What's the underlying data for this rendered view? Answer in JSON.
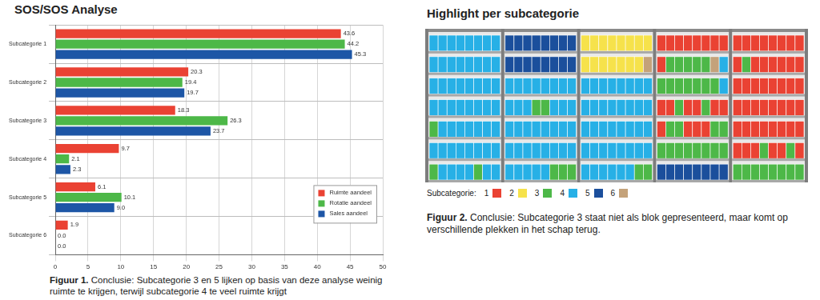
{
  "chart_data": {
    "type": "bar",
    "title": "SOS/SOS Analyse",
    "orientation": "horizontal",
    "categories": [
      "Subcategorie 1",
      "Subcategorie 2",
      "Subcategorie 3",
      "Subcategorie 4",
      "Subcategorie 5",
      "Subcategorie 6"
    ],
    "series": [
      {
        "name": "Ruimte aandeel",
        "color": "#ea4233",
        "values": [
          43.6,
          20.3,
          18.3,
          9.7,
          6.1,
          1.9
        ],
        "value_labels": [
          "43.6",
          "20.3",
          "18.3",
          "9.7",
          "6.1",
          "1.9"
        ]
      },
      {
        "name": "Rotatie aandeel",
        "color": "#4db848",
        "values": [
          44.2,
          19.4,
          26.3,
          2.1,
          10.1,
          0.0
        ],
        "value_labels": [
          "44.2",
          "19.4",
          "26.3",
          "2.1",
          "10.1",
          "0.0"
        ]
      },
      {
        "name": "Sales aandeel",
        "color": "#1d56a6",
        "values": [
          45.3,
          19.7,
          23.7,
          2.3,
          9.0,
          0.0
        ],
        "value_labels": [
          "45.3",
          "19.7",
          "23.7",
          "2.3",
          "9.0",
          "0.0"
        ]
      }
    ],
    "xlim": [
      0,
      50
    ],
    "xticks": [
      0,
      5,
      10,
      15,
      20,
      25,
      30,
      35,
      40,
      45,
      50
    ],
    "grid": true,
    "legend": "lower right",
    "data_labels": true
  },
  "figure_1_caption": {
    "label": "Figuur 1.",
    "text": "Conclusie: Subcategorie 3 en 5 lijken op basis van deze analyse weinig ruimte te krijgen, terwijl subcategorie 4 te veel ruimte krijgt"
  },
  "shelf_figure": {
    "title": "Highlight per subcategorie",
    "legend": {
      "title": "Subcategorie:",
      "items": [
        {
          "name": "1",
          "color": "#ea4233"
        },
        {
          "name": "2",
          "color": "#f6e24b"
        },
        {
          "name": "3",
          "color": "#4db848"
        },
        {
          "name": "4",
          "color": "#27b0e6"
        },
        {
          "name": "5",
          "color": "#1b4f9c"
        },
        {
          "name": "6",
          "color": "#c4a27a"
        }
      ]
    },
    "bays": [
      [
        [
          [
            "4",
            8
          ]
        ],
        [
          [
            "4",
            8
          ]
        ],
        [
          [
            "4",
            8
          ]
        ],
        [
          [
            "4",
            8
          ]
        ],
        [
          [
            "3",
            1
          ],
          [
            "4",
            7
          ]
        ],
        [
          [
            "4",
            8
          ]
        ],
        [
          [
            "3",
            1
          ],
          [
            "4",
            4
          ],
          [
            "3",
            1
          ],
          [
            "4",
            2
          ]
        ]
      ],
      [
        [
          [
            "5",
            8
          ]
        ],
        [
          [
            "5",
            8
          ]
        ],
        [
          [
            "4",
            8
          ]
        ],
        [
          [
            "4",
            3
          ],
          [
            "3",
            2
          ],
          [
            "4",
            3
          ]
        ],
        [
          [
            "4",
            8
          ]
        ],
        [
          [
            "4",
            8
          ]
        ],
        [
          [
            "4",
            5
          ],
          [
            "3",
            3
          ]
        ]
      ],
      [
        [
          [
            "2",
            8
          ]
        ],
        [
          [
            "2",
            7
          ],
          [
            "6",
            1
          ]
        ],
        [
          [
            "4",
            8
          ]
        ],
        [
          [
            "4",
            8
          ]
        ],
        [
          [
            "4",
            8
          ]
        ],
        [
          [
            "4",
            8
          ]
        ],
        [
          [
            "4",
            6
          ],
          [
            "3",
            2
          ]
        ]
      ],
      [
        [
          [
            "1",
            8
          ]
        ],
        [
          [
            "1",
            1
          ],
          [
            "3",
            5
          ],
          [
            "6",
            1
          ],
          [
            "4",
            1
          ]
        ],
        [
          [
            "3",
            7
          ],
          [
            "4",
            1
          ]
        ],
        [
          [
            "1",
            2
          ],
          [
            "3",
            1
          ],
          [
            "1",
            2
          ],
          [
            "3",
            1
          ],
          [
            "1",
            2
          ]
        ],
        [
          [
            "1",
            1
          ],
          [
            "3",
            2
          ],
          [
            "1",
            3
          ],
          [
            "3",
            2
          ]
        ],
        [
          [
            "3",
            8
          ]
        ],
        [
          [
            "5",
            8
          ]
        ]
      ],
      [
        [
          [
            "1",
            8
          ]
        ],
        [
          [
            "1",
            1
          ],
          [
            "3",
            1
          ],
          [
            "1",
            6
          ]
        ],
        [
          [
            "1",
            8
          ]
        ],
        [
          [
            "1",
            8
          ]
        ],
        [
          [
            "1",
            8
          ]
        ],
        [
          [
            "1",
            3
          ],
          [
            "3",
            1
          ],
          [
            "1",
            2
          ],
          [
            "3",
            1
          ],
          [
            "1",
            1
          ]
        ],
        [
          [
            "3",
            8
          ]
        ]
      ]
    ],
    "caption": {
      "label": "Figuur 2.",
      "text": "Conclusie: Subcategorie 3 staat niet als blok gepresenteerd, maar komt op verschillende plekken in het schap terug."
    }
  }
}
